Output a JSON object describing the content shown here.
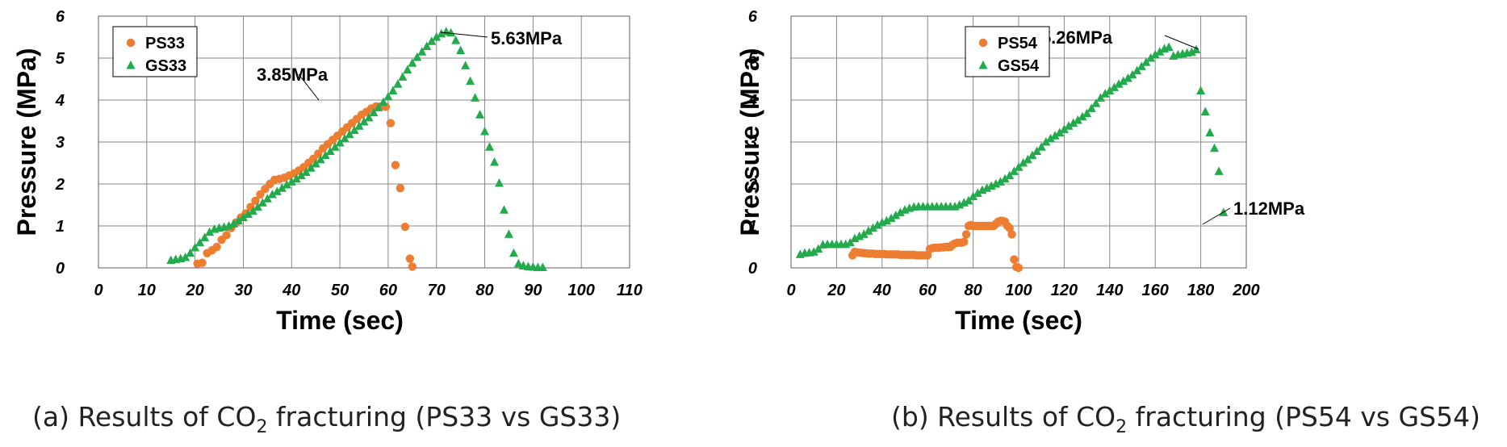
{
  "charts": [
    {
      "caption": {
        "prefix": "(a) Results of CO",
        "sub": "2",
        "suffix": " fracturing (PS33 vs GS33)"
      },
      "legend_location": "top-left",
      "grid": true
    },
    {
      "caption": {
        "prefix": "(b) Results of CO",
        "sub": "2",
        "suffix": " fracturing (PS54 vs GS54)"
      },
      "legend_location": "top-left",
      "grid": true
    }
  ],
  "chart_data": [
    {
      "type": "scatter",
      "xlabel": "Time (sec)",
      "ylabel": "Pressure (MPa)",
      "xlim": [
        0,
        110
      ],
      "ylim": [
        0,
        6
      ],
      "xticks": [
        0,
        10,
        20,
        30,
        40,
        50,
        60,
        70,
        80,
        90,
        100,
        110
      ],
      "yticks": [
        0,
        1,
        2,
        3,
        4,
        5,
        6
      ],
      "series": [
        {
          "name": "PS33",
          "color": "#ED7D31",
          "marker": "circle",
          "x": [
            20.5,
            21.5,
            22.5,
            23.5,
            24.5,
            25.5,
            26.5,
            27.5,
            28.5,
            29.5,
            30.5,
            31.5,
            32.5,
            33.5,
            34.5,
            35.5,
            36.5,
            37.5,
            38.5,
            39.5,
            40.5,
            41.5,
            42.5,
            43.5,
            44.5,
            45.5,
            46.5,
            47.5,
            48.5,
            49.5,
            50.5,
            51.5,
            52.5,
            53.5,
            54.5,
            55.5,
            56.5,
            57.5,
            58.5,
            59.5,
            60.5,
            61.5,
            62.5,
            63.5,
            64.5,
            65.0
          ],
          "y": [
            0.1,
            0.12,
            0.35,
            0.42,
            0.5,
            0.67,
            0.78,
            0.95,
            1.08,
            1.2,
            1.3,
            1.45,
            1.6,
            1.75,
            1.88,
            2.0,
            2.1,
            2.12,
            2.15,
            2.2,
            2.25,
            2.32,
            2.4,
            2.5,
            2.6,
            2.72,
            2.85,
            2.95,
            3.05,
            3.15,
            3.25,
            3.35,
            3.45,
            3.55,
            3.65,
            3.72,
            3.8,
            3.85,
            3.85,
            3.84,
            3.45,
            2.45,
            1.9,
            0.98,
            0.22,
            0.03
          ]
        },
        {
          "name": "GS33",
          "color": "#22AA4C",
          "marker": "triangle",
          "x": [
            15,
            16,
            17,
            18,
            19,
            20,
            21,
            22,
            23,
            24,
            25,
            26,
            27,
            28,
            29,
            30,
            31,
            32,
            33,
            34,
            35,
            36,
            37,
            38,
            39,
            40,
            41,
            42,
            43,
            44,
            45,
            46,
            47,
            48,
            49,
            50,
            51,
            52,
            53,
            54,
            55,
            56,
            57,
            58,
            59,
            60,
            61,
            62,
            63,
            64,
            65,
            66,
            67,
            68,
            69,
            70,
            71,
            72,
            73,
            74,
            75,
            76,
            77,
            78,
            79,
            80,
            81,
            82,
            83,
            84,
            85,
            86,
            87,
            88,
            89,
            90,
            91,
            92
          ],
          "y": [
            0.18,
            0.2,
            0.22,
            0.25,
            0.35,
            0.48,
            0.6,
            0.72,
            0.85,
            0.92,
            0.95,
            0.97,
            1.0,
            1.05,
            1.12,
            1.2,
            1.28,
            1.35,
            1.45,
            1.55,
            1.65,
            1.75,
            1.82,
            1.9,
            1.98,
            2.05,
            2.12,
            2.2,
            2.28,
            2.38,
            2.48,
            2.58,
            2.68,
            2.78,
            2.88,
            2.98,
            3.08,
            3.18,
            3.28,
            3.38,
            3.48,
            3.58,
            3.7,
            3.82,
            3.95,
            4.08,
            4.22,
            4.38,
            4.55,
            4.72,
            4.88,
            5.02,
            5.15,
            5.28,
            5.4,
            5.5,
            5.58,
            5.63,
            5.6,
            5.42,
            5.18,
            4.82,
            4.45,
            4.05,
            3.65,
            3.25,
            2.88,
            2.52,
            2.02,
            1.38,
            0.8,
            0.35,
            0.1,
            0.05,
            0.03,
            0.02,
            0.01,
            0.01
          ]
        }
      ],
      "annotations": [
        {
          "text": "3.85MPa",
          "x": 58.5,
          "y": 3.85
        },
        {
          "text": "5.63MPa",
          "x": 72,
          "y": 5.63
        }
      ]
    },
    {
      "type": "scatter",
      "xlabel": "Time (sec)",
      "ylabel": "Pressure (MPa)",
      "xlim": [
        0,
        200
      ],
      "ylim": [
        0,
        6
      ],
      "xticks": [
        0,
        20,
        40,
        60,
        80,
        100,
        120,
        140,
        160,
        180,
        200
      ],
      "yticks": [
        0,
        1,
        2,
        3,
        4,
        5,
        6
      ],
      "series": [
        {
          "name": "PS54",
          "color": "#ED7D31",
          "marker": "circle",
          "x": [
            27,
            28,
            29,
            30,
            31,
            32,
            33,
            34,
            35,
            36,
            37,
            38,
            39,
            40,
            41,
            42,
            43,
            44,
            45,
            46,
            47,
            48,
            49,
            50,
            51,
            52,
            53,
            54,
            55,
            56,
            57,
            58,
            59,
            60,
            61,
            62,
            63,
            64,
            65,
            66,
            67,
            68,
            69,
            70,
            71,
            72,
            73,
            74,
            75,
            76,
            77,
            78,
            79,
            80,
            81,
            82,
            83,
            84,
            85,
            86,
            87,
            88,
            89,
            90,
            91,
            92,
            93,
            94,
            95,
            96,
            97,
            98,
            99,
            100
          ],
          "y": [
            0.3,
            0.38,
            0.37,
            0.36,
            0.36,
            0.35,
            0.35,
            0.34,
            0.34,
            0.34,
            0.33,
            0.33,
            0.33,
            0.33,
            0.33,
            0.32,
            0.32,
            0.32,
            0.32,
            0.32,
            0.32,
            0.31,
            0.31,
            0.31,
            0.31,
            0.31,
            0.31,
            0.31,
            0.3,
            0.3,
            0.3,
            0.3,
            0.3,
            0.3,
            0.45,
            0.47,
            0.48,
            0.48,
            0.48,
            0.49,
            0.49,
            0.5,
            0.5,
            0.5,
            0.55,
            0.58,
            0.6,
            0.6,
            0.6,
            0.62,
            0.8,
            1.0,
            1.02,
            1.0,
            1.0,
            1.0,
            1.0,
            1.0,
            1.0,
            1.0,
            1.0,
            1.0,
            1.0,
            1.05,
            1.1,
            1.12,
            1.12,
            1.1,
            1.0,
            0.95,
            0.8,
            0.2,
            0.02,
            0.0
          ]
        },
        {
          "name": "GS54",
          "color": "#22AA4C",
          "marker": "triangle",
          "x": [
            4,
            6,
            8,
            10,
            12,
            14,
            16,
            18,
            20,
            22,
            24,
            26,
            28,
            30,
            32,
            34,
            36,
            38,
            40,
            42,
            44,
            46,
            48,
            50,
            52,
            54,
            56,
            58,
            60,
            62,
            64,
            66,
            68,
            70,
            72,
            74,
            76,
            78,
            80,
            82,
            84,
            86,
            88,
            90,
            92,
            94,
            96,
            98,
            100,
            102,
            104,
            106,
            108,
            110,
            112,
            114,
            116,
            118,
            120,
            122,
            124,
            126,
            128,
            130,
            132,
            134,
            136,
            138,
            140,
            142,
            144,
            146,
            148,
            150,
            152,
            154,
            156,
            158,
            160,
            162,
            164,
            166,
            168,
            170,
            172,
            174,
            176,
            178,
            180,
            182,
            184,
            186,
            188,
            190
          ],
          "y": [
            0.32,
            0.35,
            0.36,
            0.38,
            0.45,
            0.55,
            0.56,
            0.56,
            0.56,
            0.56,
            0.56,
            0.6,
            0.7,
            0.75,
            0.8,
            0.88,
            0.95,
            1.02,
            1.08,
            1.12,
            1.18,
            1.25,
            1.32,
            1.38,
            1.42,
            1.45,
            1.46,
            1.46,
            1.46,
            1.46,
            1.46,
            1.46,
            1.46,
            1.46,
            1.46,
            1.5,
            1.55,
            1.6,
            1.7,
            1.78,
            1.85,
            1.9,
            1.95,
            2.0,
            2.05,
            2.12,
            2.2,
            2.3,
            2.4,
            2.5,
            2.58,
            2.68,
            2.78,
            2.88,
            3.0,
            3.08,
            3.15,
            3.22,
            3.3,
            3.38,
            3.45,
            3.52,
            3.6,
            3.68,
            3.8,
            3.92,
            4.05,
            4.15,
            4.22,
            4.3,
            4.38,
            4.45,
            4.52,
            4.6,
            4.7,
            4.8,
            4.9,
            5.0,
            5.08,
            5.15,
            5.22,
            5.26,
            5.05,
            5.08,
            5.1,
            5.12,
            5.14,
            5.2,
            4.22,
            3.72,
            3.22,
            2.85,
            2.3,
            1.32
          ]
        }
      ],
      "annotations": [
        {
          "text": "5.26MPa",
          "x": 166,
          "y": 5.26
        },
        {
          "text": "1.12MPa",
          "x": 92,
          "y": 1.12
        }
      ]
    }
  ]
}
